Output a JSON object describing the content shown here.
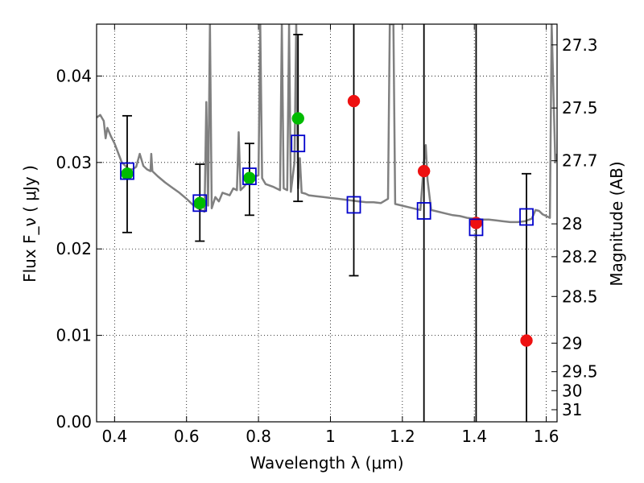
{
  "chart_data": {
    "type": "scatter",
    "xlabel": "Wavelength  λ (μm)",
    "ylabel": "Flux  F_ν  ( μJy )",
    "y2label": "Magnitude (AB)",
    "xlim": [
      0.35,
      1.63
    ],
    "ylim": [
      0.0,
      0.046
    ],
    "grid": true,
    "x_ticks": [
      0.4,
      0.6,
      0.8,
      1.0,
      1.2,
      1.4,
      1.6
    ],
    "x_tick_labels": [
      "0.4",
      "0.6",
      "0.8",
      "1",
      "1.2",
      "1.4",
      "1.6"
    ],
    "y_ticks": [
      0.0,
      0.01,
      0.02,
      0.03,
      0.04
    ],
    "y_tick_labels": [
      "0.00",
      "0.01",
      "0.02",
      "0.03",
      "0.04"
    ],
    "y2_ticks": [
      {
        "label": "27.3",
        "flux": 0.0436
      },
      {
        "label": "27.5",
        "flux": 0.0363
      },
      {
        "label": "27.7",
        "flux": 0.0302
      },
      {
        "label": "28",
        "flux": 0.0229
      },
      {
        "label": "28.2",
        "flux": 0.0191
      },
      {
        "label": "28.5",
        "flux": 0.0145
      },
      {
        "label": "29",
        "flux": 0.0091
      },
      {
        "label": "29.5",
        "flux": 0.0058
      },
      {
        "label": "30",
        "flux": 0.0036
      },
      {
        "label": "31",
        "flux": 0.0014
      }
    ],
    "series": [
      {
        "marker": "filled-circle",
        "color": "#00bb00",
        "points": [
          {
            "x": 0.435,
            "y": 0.0287
          },
          {
            "x": 0.637,
            "y": 0.0253
          },
          {
            "x": 0.775,
            "y": 0.0282
          },
          {
            "x": 0.91,
            "y": 0.0351
          }
        ]
      },
      {
        "marker": "filled-circle",
        "color": "#ee1111",
        "points": [
          {
            "x": 1.065,
            "y": 0.0371
          },
          {
            "x": 1.26,
            "y": 0.029
          },
          {
            "x": 1.405,
            "y": 0.023
          },
          {
            "x": 1.545,
            "y": 0.0094
          }
        ]
      },
      {
        "marker": "open-square",
        "color": "#0000cc",
        "points": [
          {
            "x": 0.435,
            "y": 0.029
          },
          {
            "x": 0.637,
            "y": 0.0253
          },
          {
            "x": 0.775,
            "y": 0.0284
          },
          {
            "x": 0.91,
            "y": 0.0322
          },
          {
            "x": 1.065,
            "y": 0.0251
          },
          {
            "x": 1.26,
            "y": 0.0244
          },
          {
            "x": 1.405,
            "y": 0.0225
          },
          {
            "x": 1.545,
            "y": 0.0237
          }
        ]
      }
    ],
    "error_bars": [
      {
        "x": 0.435,
        "low": 0.0219,
        "high": 0.0354,
        "capped": true
      },
      {
        "x": 0.637,
        "low": 0.0209,
        "high": 0.0298,
        "capped": true
      },
      {
        "x": 0.775,
        "low": 0.0239,
        "high": 0.0322,
        "capped": true
      },
      {
        "x": 0.91,
        "low": 0.0255,
        "high": 0.0448,
        "capped": true
      },
      {
        "x": 1.065,
        "low": 0.0169,
        "high": 0.046,
        "capped": true
      },
      {
        "x": 1.26,
        "low": 0.0,
        "high": 0.046,
        "capped": false
      },
      {
        "x": 1.405,
        "low": 0.0,
        "high": 0.046,
        "capped": false
      },
      {
        "x": 1.545,
        "low": 0.0,
        "high": 0.0287,
        "capped": true
      }
    ],
    "model_spectrum": {
      "color": "#808080",
      "points": [
        [
          0.35,
          0.0352
        ],
        [
          0.36,
          0.0355
        ],
        [
          0.37,
          0.0348
        ],
        [
          0.375,
          0.0328
        ],
        [
          0.38,
          0.034
        ],
        [
          0.39,
          0.033
        ],
        [
          0.4,
          0.0322
        ],
        [
          0.41,
          0.0311
        ],
        [
          0.42,
          0.03
        ],
        [
          0.43,
          0.0296
        ],
        [
          0.44,
          0.0292
        ],
        [
          0.45,
          0.0292
        ],
        [
          0.46,
          0.0295
        ],
        [
          0.47,
          0.031
        ],
        [
          0.48,
          0.0296
        ],
        [
          0.49,
          0.0292
        ],
        [
          0.5,
          0.029
        ],
        [
          0.502,
          0.031
        ],
        [
          0.505,
          0.029
        ],
        [
          0.52,
          0.0284
        ],
        [
          0.54,
          0.0277
        ],
        [
          0.56,
          0.0271
        ],
        [
          0.58,
          0.0265
        ],
        [
          0.6,
          0.0258
        ],
        [
          0.62,
          0.025
        ],
        [
          0.64,
          0.0245
        ],
        [
          0.65,
          0.0243
        ],
        [
          0.655,
          0.037
        ],
        [
          0.66,
          0.025
        ],
        [
          0.665,
          0.046
        ],
        [
          0.67,
          0.0247
        ],
        [
          0.68,
          0.026
        ],
        [
          0.69,
          0.0255
        ],
        [
          0.7,
          0.0265
        ],
        [
          0.72,
          0.0262
        ],
        [
          0.73,
          0.027
        ],
        [
          0.74,
          0.0268
        ],
        [
          0.745,
          0.0335
        ],
        [
          0.75,
          0.0268
        ],
        [
          0.76,
          0.0272
        ],
        [
          0.775,
          0.028
        ],
        [
          0.79,
          0.0284
        ],
        [
          0.8,
          0.0285
        ],
        [
          0.805,
          0.046
        ],
        [
          0.81,
          0.0282
        ],
        [
          0.82,
          0.0275
        ],
        [
          0.84,
          0.0272
        ],
        [
          0.86,
          0.0268
        ],
        [
          0.865,
          0.046
        ],
        [
          0.87,
          0.027
        ],
        [
          0.88,
          0.0268
        ],
        [
          0.885,
          0.046
        ],
        [
          0.89,
          0.0266
        ],
        [
          0.9,
          0.03
        ],
        [
          0.905,
          0.046
        ],
        [
          0.91,
          0.027
        ],
        [
          0.915,
          0.0305
        ],
        [
          0.92,
          0.0265
        ],
        [
          0.93,
          0.0264
        ],
        [
          0.94,
          0.0262
        ],
        [
          0.96,
          0.0261
        ],
        [
          0.98,
          0.026
        ],
        [
          1.0,
          0.0259
        ],
        [
          1.02,
          0.0258
        ],
        [
          1.04,
          0.0257
        ],
        [
          1.06,
          0.0256
        ],
        [
          1.08,
          0.0255
        ],
        [
          1.1,
          0.0254
        ],
        [
          1.12,
          0.0254
        ],
        [
          1.14,
          0.0253
        ],
        [
          1.16,
          0.0258
        ],
        [
          1.165,
          0.046
        ],
        [
          1.175,
          0.046
        ],
        [
          1.18,
          0.0252
        ],
        [
          1.2,
          0.025
        ],
        [
          1.22,
          0.0248
        ],
        [
          1.24,
          0.0246
        ],
        [
          1.25,
          0.0245
        ],
        [
          1.26,
          0.03
        ],
        [
          1.265,
          0.032
        ],
        [
          1.27,
          0.028
        ],
        [
          1.28,
          0.0245
        ],
        [
          1.3,
          0.0243
        ],
        [
          1.32,
          0.0241
        ],
        [
          1.34,
          0.0239
        ],
        [
          1.36,
          0.0238
        ],
        [
          1.38,
          0.0236
        ],
        [
          1.4,
          0.0235
        ],
        [
          1.42,
          0.0234
        ],
        [
          1.44,
          0.0234
        ],
        [
          1.46,
          0.0233
        ],
        [
          1.48,
          0.0232
        ],
        [
          1.5,
          0.0231
        ],
        [
          1.52,
          0.0231
        ],
        [
          1.54,
          0.0232
        ],
        [
          1.56,
          0.0235
        ],
        [
          1.57,
          0.0245
        ],
        [
          1.58,
          0.0244
        ],
        [
          1.59,
          0.024
        ],
        [
          1.6,
          0.0238
        ],
        [
          1.61,
          0.0236
        ],
        [
          1.615,
          0.046
        ],
        [
          1.625,
          0.03
        ],
        [
          1.63,
          0.031
        ]
      ]
    }
  }
}
